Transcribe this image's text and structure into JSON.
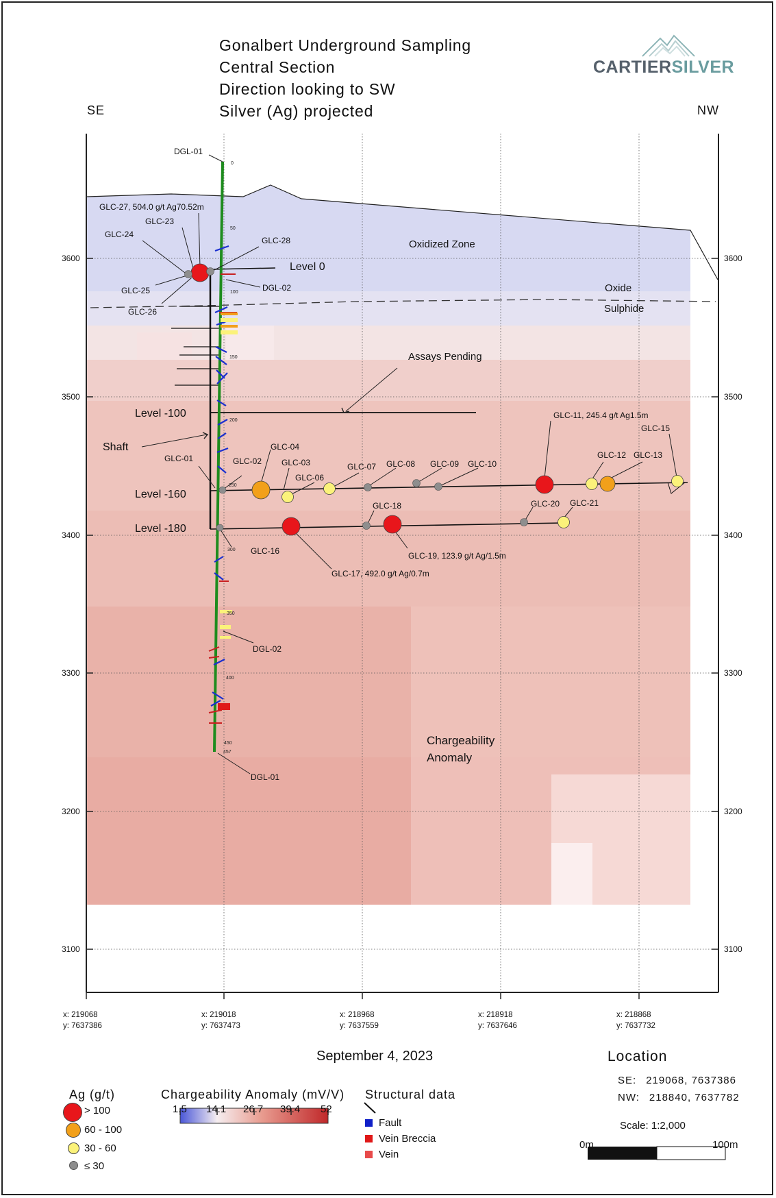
{
  "title": {
    "line1": "Gonalbert Underground Sampling",
    "line2": "Central Section",
    "line3": "Direction looking to SW",
    "line4": "Silver (Ag) projected"
  },
  "logo": {
    "part1": "CARTIER",
    "part2": "SILVER"
  },
  "direction": {
    "left": "SE",
    "right": "NW"
  },
  "elevation_ticks": [
    "3600",
    "3500",
    "3400",
    "3300",
    "3200",
    "3100"
  ],
  "easting_labels": [
    {
      "x": "x: 219068",
      "y": "y: 7637386"
    },
    {
      "x": "x: 219018",
      "y": "y: 7637473"
    },
    {
      "x": "x: 218968",
      "y": "y: 7637559"
    },
    {
      "x": "x: 218918",
      "y": "y: 7637646"
    },
    {
      "x": "x: 218868",
      "y": "y: 7637732"
    }
  ],
  "annotations": {
    "oxidized_zone": "Oxidized Zone",
    "oxide": "Oxide",
    "sulphide": "Sulphide",
    "assays_pending": "Assays Pending",
    "level0": "Level 0",
    "level100": "Level -100",
    "level160": "Level -160",
    "level180": "Level -180",
    "shaft": "Shaft",
    "chargeability1": "Chargeability",
    "chargeability2": "Anomaly"
  },
  "drillholes": {
    "dgl01_top": "DGL-01",
    "dgl02_top": "DGL-02",
    "dgl02_mid": "DGL-02",
    "dgl01_bottom": "DGL-01"
  },
  "depth_marks": [
    "0",
    "50",
    "100",
    "150",
    "200",
    "250",
    "300",
    "350",
    "400",
    "450",
    "457"
  ],
  "samples": {
    "glc27": "GLC-27, 504.0 g/t Ag70.52m",
    "glc23": "GLC-23",
    "glc24": "GLC-24",
    "glc28": "GLC-28",
    "glc25": "GLC-25",
    "glc26": "GLC-26",
    "glc01": "GLC-01",
    "glc02": "GLC-02",
    "glc03": "GLC-03",
    "glc04": "GLC-04",
    "glc06": "GLC-06",
    "glc07": "GLC-07",
    "glc08": "GLC-08",
    "glc09": "GLC-09",
    "glc10": "GLC-10",
    "glc11": "GLC-11, 245.4 g/t Ag1.5m",
    "glc12": "GLC-12",
    "glc13": "GLC-13",
    "glc15": "GLC-15",
    "glc16": "GLC-16",
    "glc17": "GLC-17, 492.0 g/t Ag/0.7m",
    "glc18": "GLC-18",
    "glc19": "GLC-19, 123.9 g/t Ag/1.5m",
    "glc20": "GLC-20",
    "glc21": "GLC-21"
  },
  "date": "September 4, 2023",
  "location": {
    "title": "Location",
    "se_label": "SE:",
    "se_value": "219068, 7637386",
    "nw_label": "NW:",
    "nw_value": "218840, 7637782",
    "scale": "Scale: 1:2,000",
    "scale_start": "0m",
    "scale_end": "100m"
  },
  "legend": {
    "ag_title": "Ag (g/t)",
    "ag_items": [
      {
        "label": "> 100",
        "color": "#e8161b"
      },
      {
        "label": "60 - 100",
        "color": "#f2a01a"
      },
      {
        "label": "30 - 60",
        "color": "#fbf27a"
      },
      {
        "label": "≤ 30",
        "color": "#8e8e8e"
      }
    ],
    "charge_title": "Chargeability Anomaly (mV/V)",
    "charge_ticks": [
      "1.5",
      "14.1",
      "26.7",
      "39.4",
      "52"
    ],
    "struct_title": "Structural data",
    "struct_items": [
      {
        "label": "Fault",
        "color": "#1020c8"
      },
      {
        "label": "Vein Breccia",
        "color": "#e01818"
      },
      {
        "label": "Vein",
        "color": "#e84a4a"
      }
    ]
  },
  "colors": {
    "trace": "#1e8c1e",
    "fault": "#1a2fd0",
    "vein_breccia": "#c82020",
    "high_grade": "#e8161b",
    "mid_grade": "#f2a01a",
    "low_grade": "#fbf27a",
    "trace_grade": "#8e8e8e"
  }
}
